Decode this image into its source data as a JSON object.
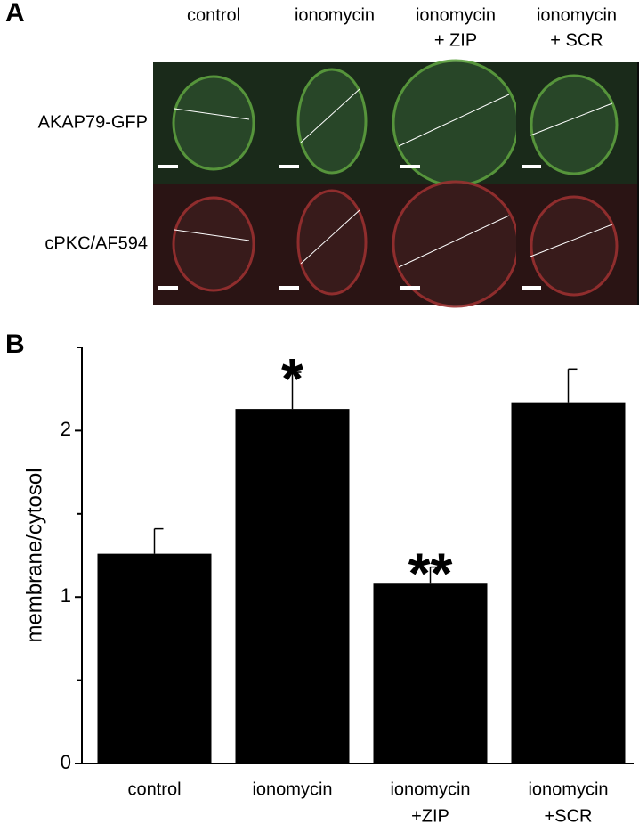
{
  "panel_a": {
    "label": "A",
    "columns": [
      [
        "control"
      ],
      [
        "ionomycin"
      ],
      [
        "ionomycin",
        "+ ZIP"
      ],
      [
        "ionomycin",
        "+ SCR"
      ]
    ],
    "rows": [
      "AKAP79-GFP",
      "cPKC/AF594"
    ]
  },
  "chart_data": {
    "type": "bar",
    "panel_label": "B",
    "y_label": "membrane/cytosol",
    "categories": [
      [
        "control"
      ],
      [
        "ionomycin"
      ],
      [
        "ionomycin",
        "+ZIP"
      ],
      [
        "ionomycin",
        "+SCR"
      ]
    ],
    "values": [
      1.26,
      2.13,
      1.08,
      2.17
    ],
    "errors": [
      0.15,
      0.22,
      0.1,
      0.2
    ],
    "annotations": [
      null,
      "*",
      "**",
      null
    ],
    "color": "#000000",
    "ylim": [
      0,
      2.5
    ],
    "yticks": [
      0,
      1,
      2
    ],
    "yminorticks": [
      0.5,
      1.5,
      2.5
    ]
  }
}
